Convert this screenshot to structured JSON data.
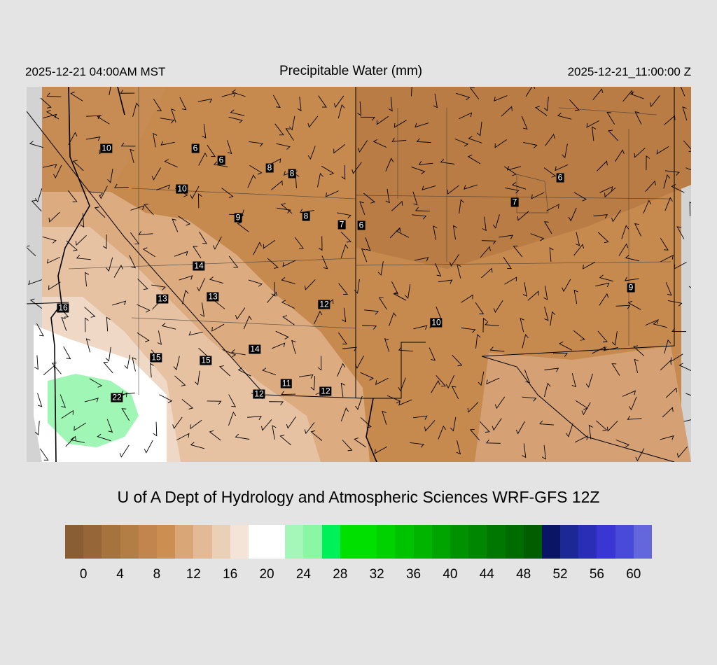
{
  "header": {
    "left": "2025-12-21 04:00AM MST",
    "title": "Precipitable Water (mm)",
    "right": "2025-12-21_11:00:00 Z"
  },
  "map": {
    "labels": [
      "10",
      "6",
      "6",
      "8",
      "8",
      "10",
      "9",
      "8",
      "7",
      "6",
      "6",
      "7",
      "14",
      "13",
      "13",
      "12",
      "16",
      "10",
      "9",
      "15",
      "15",
      "14",
      "11",
      "12",
      "12",
      "22"
    ]
  },
  "credit": "U of A Dept of Hydrology and Atmospheric Sciences WRF-GFS 12Z",
  "colorbar": {
    "colors": [
      "#8a5e35",
      "#966639",
      "#a6733f",
      "#b37d46",
      "#c1854d",
      "#cd8f51",
      "#d9a677",
      "#e3b998",
      "#ebd0b8",
      "#f4e4d8",
      "#ffffff",
      "#ffffff",
      "#a4f7b9",
      "#8af7a5",
      "#00f05a",
      "#00e000",
      "#00e000",
      "#00d200",
      "#00c300",
      "#00b400",
      "#00a400",
      "#009100",
      "#008600",
      "#007800",
      "#006c00",
      "#005d00",
      "#0a1565",
      "#1b2896",
      "#2a2db5",
      "#3a36d4",
      "#4a4ad8",
      "#6466dc"
    ],
    "ticks": [
      "0",
      "4",
      "8",
      "12",
      "16",
      "20",
      "24",
      "28",
      "32",
      "36",
      "40",
      "44",
      "48",
      "52",
      "56",
      "60"
    ]
  }
}
